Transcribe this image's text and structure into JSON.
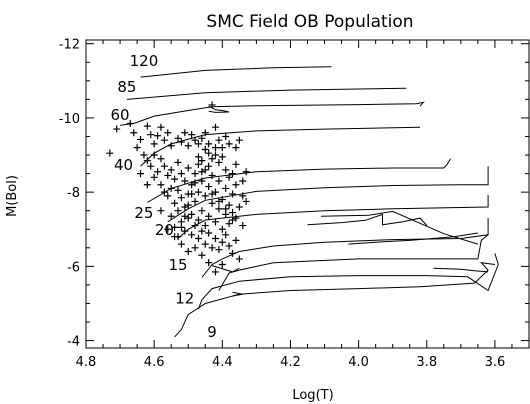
{
  "chart_data": {
    "type": "scatter",
    "title": "SMC Field OB Population",
    "xlabel": "Log(T)",
    "ylabel": "M(Bol)",
    "xlim": [
      4.8,
      3.5
    ],
    "ylim": [
      -3.8,
      -12.1
    ],
    "x_ticks": [
      "4.8",
      "4.6",
      "4.4",
      "4.2",
      "4.0",
      "3.8",
      "3.6"
    ],
    "x_tick_values": [
      4.8,
      4.6,
      4.4,
      4.2,
      4.0,
      3.8,
      3.6
    ],
    "y_ticks": [
      "-12",
      "-10",
      "-8",
      "-6",
      "-4"
    ],
    "y_tick_values": [
      -12,
      -10,
      -8,
      -6,
      -4
    ],
    "grid": false,
    "track_labels": [
      {
        "text": "120",
        "x": 4.63,
        "y": -11.4
      },
      {
        "text": "85",
        "x": 4.68,
        "y": -10.7
      },
      {
        "text": "60",
        "x": 4.7,
        "y": -9.95
      },
      {
        "text": "40",
        "x": 4.69,
        "y": -8.6
      },
      {
        "text": "25",
        "x": 4.63,
        "y": -7.3
      },
      {
        "text": "20",
        "x": 4.57,
        "y": -6.85
      },
      {
        "text": "15",
        "x": 4.53,
        "y": -5.9
      },
      {
        "text": "12",
        "x": 4.51,
        "y": -5.0
      },
      {
        "text": "9",
        "x": 4.43,
        "y": -4.1
      }
    ],
    "series": [
      {
        "type": "line",
        "points": [
          [
            4.64,
            -11.1
          ],
          [
            4.45,
            -11.28
          ],
          [
            4.25,
            -11.35
          ],
          [
            4.08,
            -11.38
          ]
        ]
      },
      {
        "type": "line",
        "points": [
          [
            4.68,
            -10.5
          ],
          [
            4.45,
            -10.68
          ],
          [
            4.2,
            -10.75
          ],
          [
            3.86,
            -10.8
          ]
        ]
      },
      {
        "type": "line",
        "points": [
          [
            4.7,
            -9.8
          ],
          [
            4.66,
            -9.85
          ],
          [
            4.6,
            -10.05
          ],
          [
            4.5,
            -10.2
          ],
          [
            4.43,
            -10.3
          ],
          [
            4.3,
            -10.33
          ],
          [
            4.0,
            -10.36
          ],
          [
            3.83,
            -10.38
          ],
          [
            3.81,
            -10.42
          ],
          [
            3.82,
            -10.32
          ]
        ]
      },
      {
        "type": "line",
        "points": [
          [
            4.44,
            -10.32
          ],
          [
            4.42,
            -10.22
          ],
          [
            4.4,
            -10.2
          ],
          [
            4.38,
            -10.16
          ],
          [
            4.42,
            -10.15
          ],
          [
            4.44,
            -10.18
          ]
        ]
      },
      {
        "type": "line",
        "points": [
          [
            4.64,
            -8.7
          ],
          [
            4.6,
            -9.05
          ],
          [
            4.55,
            -9.3
          ],
          [
            4.45,
            -9.55
          ],
          [
            4.3,
            -9.65
          ],
          [
            4.1,
            -9.7
          ],
          [
            3.82,
            -9.75
          ]
        ]
      },
      {
        "type": "line",
        "points": [
          [
            4.62,
            -7.72
          ],
          [
            4.55,
            -8.1
          ],
          [
            4.45,
            -8.38
          ],
          [
            4.3,
            -8.55
          ],
          [
            4.1,
            -8.62
          ],
          [
            3.9,
            -8.65
          ],
          [
            3.75,
            -8.65
          ],
          [
            3.74,
            -8.75
          ],
          [
            3.73,
            -8.9
          ]
        ]
      },
      {
        "type": "line",
        "points": [
          [
            4.56,
            -7.2
          ],
          [
            4.5,
            -7.55
          ],
          [
            4.45,
            -7.78
          ],
          [
            4.3,
            -8.02
          ],
          [
            4.1,
            -8.12
          ],
          [
            3.9,
            -8.18
          ],
          [
            3.7,
            -8.2
          ],
          [
            3.62,
            -8.2
          ],
          [
            3.62,
            -8.7
          ]
        ]
      },
      {
        "type": "line",
        "points": [
          [
            4.53,
            -6.75
          ],
          [
            4.5,
            -7.0
          ],
          [
            4.45,
            -7.25
          ],
          [
            4.3,
            -7.4
          ],
          [
            4.1,
            -7.5
          ],
          [
            3.9,
            -7.55
          ],
          [
            3.62,
            -7.6
          ],
          [
            3.62,
            -7.92
          ]
        ]
      },
      {
        "type": "line",
        "points": [
          [
            4.15,
            -7.12
          ],
          [
            4.05,
            -7.18
          ],
          [
            3.98,
            -7.24
          ],
          [
            3.93,
            -7.4
          ],
          [
            3.93,
            -7.12
          ],
          [
            3.87,
            -7.2
          ],
          [
            3.82,
            -7.3
          ],
          [
            3.8,
            -7.1
          ]
        ]
      },
      {
        "type": "line",
        "points": [
          [
            4.46,
            -5.7
          ],
          [
            4.43,
            -6.05
          ],
          [
            4.4,
            -6.2
          ],
          [
            4.35,
            -6.4
          ],
          [
            4.25,
            -6.55
          ],
          [
            4.1,
            -6.65
          ],
          [
            3.9,
            -6.72
          ],
          [
            3.7,
            -6.75
          ],
          [
            3.62,
            -6.85
          ],
          [
            3.62,
            -7.3
          ]
        ]
      },
      {
        "type": "line",
        "points": [
          [
            4.11,
            -7.35
          ],
          [
            3.97,
            -7.38
          ],
          [
            3.9,
            -7.48
          ],
          [
            3.75,
            -6.88
          ],
          [
            3.65,
            -6.6
          ]
        ]
      },
      {
        "type": "line",
        "points": [
          [
            4.41,
            -5.35
          ],
          [
            4.38,
            -5.82
          ],
          [
            4.35,
            -5.9
          ],
          [
            4.25,
            -6.1
          ],
          [
            4.0,
            -6.2
          ],
          [
            3.8,
            -6.2
          ],
          [
            3.65,
            -6.2
          ],
          [
            3.64,
            -6.7
          ],
          [
            3.62,
            -6.85
          ]
        ]
      },
      {
        "type": "line",
        "points": [
          [
            4.43,
            -6.02
          ],
          [
            4.37,
            -5.85
          ],
          [
            4.35,
            -5.95
          ]
        ]
      },
      {
        "type": "line",
        "points": [
          [
            4.03,
            -6.6
          ],
          [
            3.95,
            -6.65
          ],
          [
            3.85,
            -6.7
          ],
          [
            3.72,
            -6.8
          ],
          [
            3.65,
            -6.9
          ]
        ]
      },
      {
        "type": "line",
        "points": [
          [
            4.47,
            -4.85
          ],
          [
            4.46,
            -5.1
          ],
          [
            4.43,
            -5.4
          ],
          [
            4.35,
            -5.6
          ],
          [
            4.2,
            -5.72
          ],
          [
            4.0,
            -5.75
          ],
          [
            3.8,
            -5.75
          ],
          [
            3.68,
            -5.72
          ],
          [
            3.62,
            -5.35
          ],
          [
            3.59,
            -6.05
          ],
          [
            3.6,
            -6.35
          ]
        ]
      },
      {
        "type": "line",
        "points": [
          [
            3.78,
            -5.95
          ],
          [
            3.7,
            -5.92
          ],
          [
            3.66,
            -5.88
          ],
          [
            3.62,
            -5.85
          ]
        ]
      },
      {
        "type": "line",
        "points": [
          [
            4.54,
            -4.1
          ],
          [
            4.52,
            -4.3
          ],
          [
            4.5,
            -4.7
          ],
          [
            4.45,
            -5.0
          ],
          [
            4.35,
            -5.25
          ],
          [
            4.2,
            -5.35
          ],
          [
            4.0,
            -5.4
          ],
          [
            3.82,
            -5.45
          ],
          [
            3.66,
            -5.55
          ],
          [
            3.62,
            -5.9
          ],
          [
            3.64,
            -6.1
          ],
          [
            3.6,
            -6.05
          ]
        ]
      },
      {
        "type": "line",
        "points": [
          [
            4.37,
            -5.3
          ],
          [
            4.34,
            -5.25
          ],
          [
            4.37,
            -5.2
          ]
        ]
      }
    ],
    "points": [
      [
        4.73,
        -9.05
      ],
      [
        4.71,
        -9.7
      ],
      [
        4.67,
        -9.85
      ],
      [
        4.66,
        -9.6
      ],
      [
        4.64,
        -9.42
      ],
      [
        4.62,
        -9.78
      ],
      [
        4.61,
        -9.55
      ],
      [
        4.6,
        -9.3
      ],
      [
        4.59,
        -9.52
      ],
      [
        4.58,
        -9.75
      ],
      [
        4.57,
        -9.4
      ],
      [
        4.56,
        -9.6
      ],
      [
        4.55,
        -9.25
      ],
      [
        4.53,
        -9.45
      ],
      [
        4.52,
        -9.35
      ],
      [
        4.51,
        -9.6
      ],
      [
        4.5,
        -9.25
      ],
      [
        4.49,
        -9.55
      ],
      [
        4.48,
        -9.4
      ],
      [
        4.47,
        -9.3
      ],
      [
        4.46,
        -9.45
      ],
      [
        4.45,
        -9.15
      ],
      [
        4.45,
        -9.6
      ],
      [
        4.44,
        -9.3
      ],
      [
        4.43,
        -10.35
      ],
      [
        4.42,
        -9.75
      ],
      [
        4.42,
        -9.0
      ],
      [
        4.41,
        -9.4
      ],
      [
        4.4,
        -9.2
      ],
      [
        4.39,
        -9.5
      ],
      [
        4.38,
        -9.3
      ],
      [
        4.36,
        -9.2
      ],
      [
        4.35,
        -9.4
      ],
      [
        4.65,
        -9.2
      ],
      [
        4.63,
        -9.0
      ],
      [
        4.62,
        -8.85
      ],
      [
        4.61,
        -8.7
      ],
      [
        4.6,
        -8.4
      ],
      [
        4.6,
        -9.0
      ],
      [
        4.59,
        -8.55
      ],
      [
        4.58,
        -8.2
      ],
      [
        4.58,
        -8.9
      ],
      [
        4.57,
        -8.0
      ],
      [
        4.57,
        -8.7
      ],
      [
        4.56,
        -8.45
      ],
      [
        4.56,
        -7.9
      ],
      [
        4.55,
        -8.6
      ],
      [
        4.55,
        -8.1
      ],
      [
        4.54,
        -7.7
      ],
      [
        4.54,
        -8.35
      ],
      [
        4.53,
        -8.05
      ],
      [
        4.53,
        -8.8
      ],
      [
        4.52,
        -7.85
      ],
      [
        4.52,
        -8.5
      ],
      [
        4.51,
        -7.6
      ],
      [
        4.51,
        -8.3
      ],
      [
        4.5,
        -7.95
      ],
      [
        4.5,
        -8.65
      ],
      [
        4.49,
        -7.4
      ],
      [
        4.49,
        -8.2
      ],
      [
        4.48,
        -7.75
      ],
      [
        4.48,
        -8.5
      ],
      [
        4.47,
        -7.25
      ],
      [
        4.47,
        -8.0
      ],
      [
        4.47,
        -8.75
      ],
      [
        4.46,
        -7.5
      ],
      [
        4.46,
        -8.3
      ],
      [
        4.45,
        -7.1
      ],
      [
        4.45,
        -7.9
      ],
      [
        4.45,
        -8.6
      ],
      [
        4.44,
        -7.35
      ],
      [
        4.44,
        -8.15
      ],
      [
        4.43,
        -7.7
      ],
      [
        4.43,
        -8.45
      ],
      [
        4.42,
        -7.2
      ],
      [
        4.42,
        -8.0
      ],
      [
        4.41,
        -7.55
      ],
      [
        4.41,
        -8.3
      ],
      [
        4.4,
        -7.0
      ],
      [
        4.4,
        -7.8
      ],
      [
        4.39,
        -8.1
      ],
      [
        4.39,
        -7.4
      ],
      [
        4.38,
        -7.65
      ],
      [
        4.38,
        -8.4
      ],
      [
        4.37,
        -7.95
      ],
      [
        4.36,
        -7.3
      ],
      [
        4.36,
        -8.2
      ],
      [
        4.35,
        -7.6
      ],
      [
        4.34,
        -7.9
      ],
      [
        4.55,
        -7.35
      ],
      [
        4.54,
        -7.05
      ],
      [
        4.53,
        -7.5
      ],
      [
        4.52,
        -7.2
      ],
      [
        4.51,
        -6.95
      ],
      [
        4.5,
        -7.3
      ],
      [
        4.49,
        -6.85
      ],
      [
        4.48,
        -7.1
      ],
      [
        4.47,
        -6.75
      ],
      [
        4.46,
        -6.95
      ],
      [
        4.45,
        -6.6
      ],
      [
        4.44,
        -6.9
      ],
      [
        4.43,
        -6.5
      ],
      [
        4.42,
        -6.75
      ],
      [
        4.41,
        -6.45
      ],
      [
        4.4,
        -6.65
      ],
      [
        4.39,
        -6.85
      ],
      [
        4.38,
        -6.55
      ],
      [
        4.37,
        -6.35
      ],
      [
        4.36,
        -6.7
      ],
      [
        4.35,
        -6.2
      ],
      [
        4.48,
        -6.5
      ],
      [
        4.46,
        -6.3
      ],
      [
        4.44,
        -6.1
      ],
      [
        4.42,
        -5.85
      ],
      [
        4.4,
        -6.05
      ],
      [
        4.52,
        -6.6
      ],
      [
        4.5,
        -6.4
      ],
      [
        4.47,
        -8.95
      ],
      [
        4.46,
        -8.85
      ],
      [
        4.44,
        -8.7
      ],
      [
        4.43,
        -8.9
      ],
      [
        4.41,
        -8.8
      ],
      [
        4.39,
        -8.6
      ],
      [
        4.37,
        -8.5
      ],
      [
        4.36,
        -8.75
      ],
      [
        4.34,
        -8.3
      ],
      [
        4.33,
        -8.55
      ],
      [
        4.62,
        -8.2
      ],
      [
        4.64,
        -8.5
      ],
      [
        4.58,
        -7.5
      ],
      [
        4.56,
        -7.0
      ],
      [
        4.54,
        -6.8
      ],
      [
        4.38,
        -7.15
      ],
      [
        4.37,
        -7.45
      ],
      [
        4.34,
        -7.1
      ],
      [
        4.33,
        -7.75
      ],
      [
        4.4,
        -8.95
      ],
      [
        4.42,
        -9.2
      ],
      [
        4.44,
        -9.05
      ],
      [
        4.46,
        -8.55
      ],
      [
        4.48,
        -8.25
      ],
      [
        4.49,
        -7.95
      ],
      [
        4.5,
        -7.65
      ],
      [
        4.51,
        -7.35
      ],
      [
        4.52,
        -7.05
      ],
      [
        4.53,
        -6.8
      ],
      [
        4.43,
        -7.95
      ],
      [
        4.41,
        -7.75
      ],
      [
        4.39,
        -7.55
      ],
      [
        4.37,
        -7.25
      ]
    ]
  }
}
